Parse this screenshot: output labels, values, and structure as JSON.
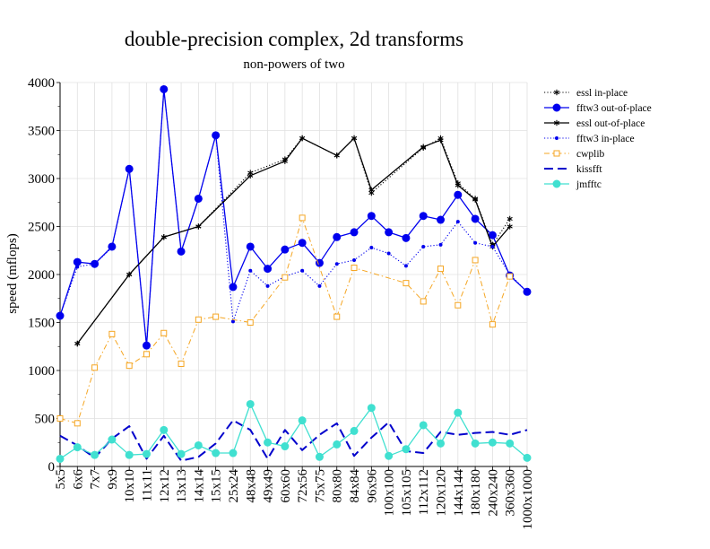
{
  "chart_data": {
    "type": "line",
    "title": "double-precision complex, 2d transforms",
    "subtitle": "non-powers of two",
    "xlabel": "",
    "ylabel": "speed (mflops)",
    "ylim": [
      0,
      4000
    ],
    "yticks": [
      0,
      500,
      1000,
      1500,
      2000,
      2500,
      3000,
      3500,
      4000
    ],
    "grid": true,
    "legend_position": "right",
    "categories": [
      "5x5",
      "6x6",
      "7x7",
      "9x9",
      "10x10",
      "11x11",
      "12x12",
      "13x13",
      "14x14",
      "15x15",
      "25x24",
      "48x48",
      "49x49",
      "60x60",
      "72x56",
      "75x75",
      "80x80",
      "84x84",
      "96x96",
      "100x100",
      "105x105",
      "112x112",
      "120x120",
      "144x144",
      "180x180",
      "240x240",
      "360x360",
      "1000x1000"
    ],
    "series": [
      {
        "name": "essl in-place",
        "color": "#000000",
        "line": "dotted",
        "marker": "asterisk",
        "values": [
          null,
          1280,
          null,
          null,
          2000,
          null,
          2390,
          null,
          2500,
          null,
          null,
          3060,
          null,
          3200,
          3420,
          null,
          3240,
          3420,
          2850,
          null,
          null,
          3320,
          3420,
          2950,
          2790,
          2310,
          2580,
          null
        ]
      },
      {
        "name": "fftw3 out-of-place",
        "color": "#0000ee",
        "line": "solid",
        "marker": "circle",
        "values": [
          1570,
          2130,
          2110,
          2290,
          3100,
          1260,
          3930,
          2240,
          2790,
          3450,
          1870,
          2290,
          2060,
          2260,
          2330,
          2120,
          2390,
          2440,
          2610,
          2440,
          2380,
          2610,
          2570,
          2830,
          2580,
          2410,
          1990,
          1820
        ]
      },
      {
        "name": "essl out-of-place",
        "color": "#000000",
        "line": "solid",
        "marker": "asterisk",
        "values": [
          null,
          1280,
          null,
          null,
          2000,
          null,
          2390,
          null,
          2500,
          null,
          null,
          3030,
          null,
          3180,
          3420,
          null,
          3240,
          3420,
          2880,
          null,
          null,
          3330,
          3400,
          2930,
          2780,
          2290,
          2500,
          null
        ]
      },
      {
        "name": "fftw3 in-place",
        "color": "#0000ee",
        "line": "dotted",
        "marker": "dot",
        "values": [
          1570,
          2080,
          2110,
          2280,
          3100,
          1260,
          3930,
          2240,
          2790,
          3450,
          1510,
          2040,
          1880,
          1980,
          2040,
          1880,
          2110,
          2150,
          2280,
          2220,
          2090,
          2290,
          2310,
          2550,
          2330,
          2290,
          2000,
          1820
        ]
      },
      {
        "name": "cwplib",
        "color": "#f5a623",
        "line": "dashdot",
        "marker": "square",
        "values": [
          500,
          450,
          1030,
          1380,
          1050,
          1170,
          1390,
          1070,
          1530,
          1560,
          null,
          1500,
          null,
          1970,
          2590,
          null,
          1560,
          2070,
          null,
          null,
          1910,
          1720,
          2060,
          1680,
          2150,
          1480,
          1980,
          null
        ]
      },
      {
        "name": "kissfft",
        "color": "#0000cc",
        "line": "dashed",
        "marker": "none",
        "values": [
          320,
          220,
          90,
          290,
          420,
          80,
          320,
          60,
          100,
          240,
          480,
          380,
          80,
          380,
          170,
          330,
          450,
          110,
          300,
          460,
          160,
          140,
          360,
          330,
          350,
          360,
          330,
          380
        ]
      },
      {
        "name": "jmfftc",
        "color": "#40e0d0",
        "line": "solid",
        "marker": "circle",
        "values": [
          80,
          200,
          120,
          280,
          120,
          130,
          380,
          130,
          220,
          140,
          140,
          650,
          250,
          210,
          480,
          100,
          230,
          370,
          610,
          110,
          180,
          430,
          240,
          560,
          240,
          250,
          240,
          90
        ]
      }
    ]
  }
}
